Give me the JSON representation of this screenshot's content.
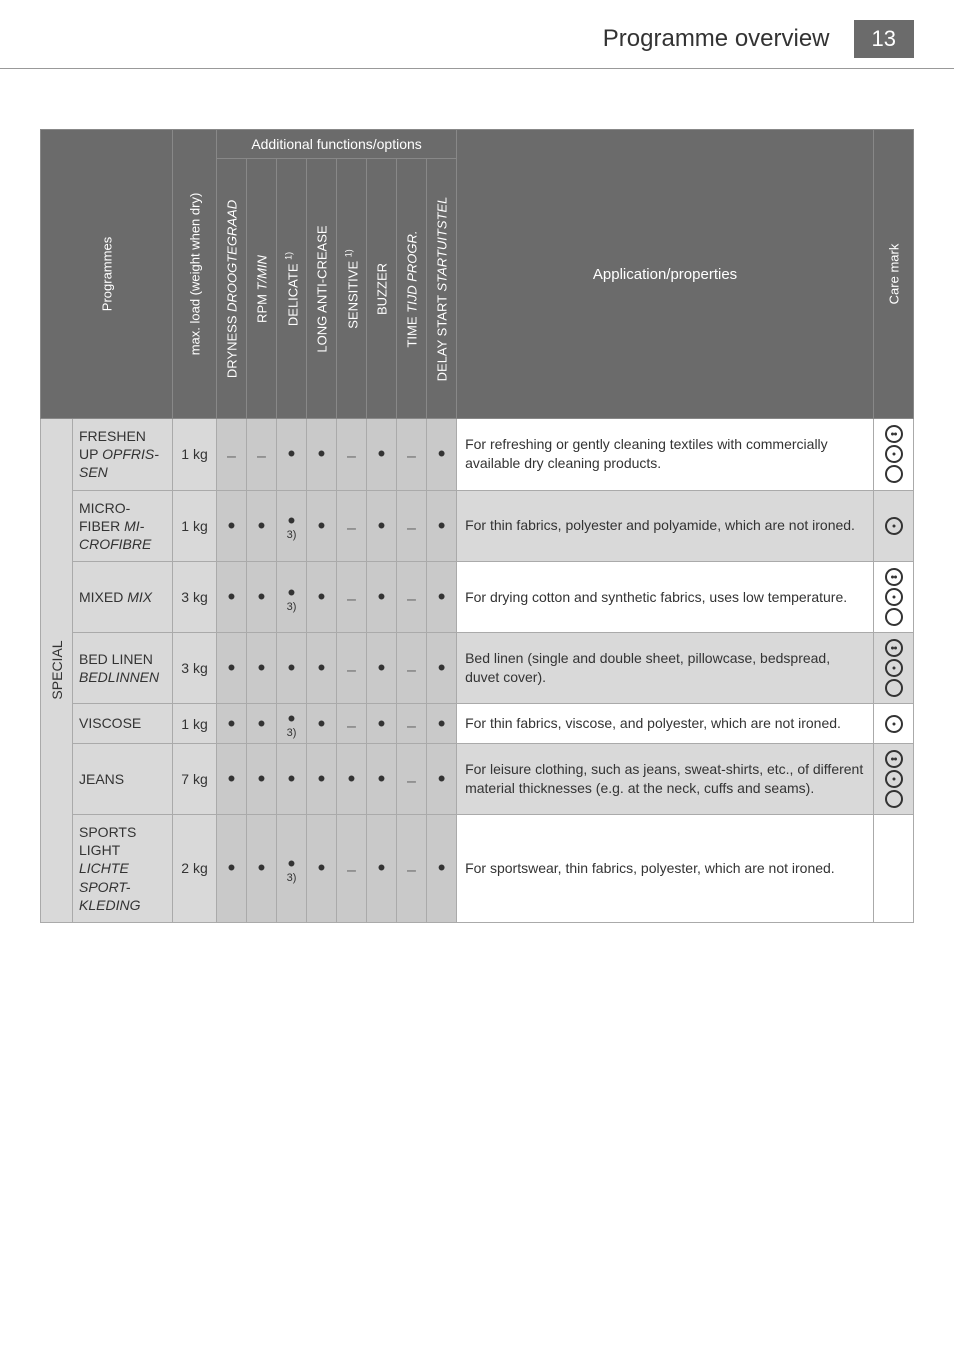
{
  "header": {
    "title": "Programme overview",
    "page": "13"
  },
  "table": {
    "addfunc_header": "Additional functions/options",
    "col_programmes": "Programmes",
    "col_maxload": "max. load (weight when dry)",
    "col_app": "Application/properties",
    "col_care": "Care mark",
    "opt_cols": [
      {
        "label": "DRYNESS ",
        "ital": "DROOGTEGRAAD"
      },
      {
        "label": "RPM ",
        "ital": "T/MIN"
      },
      {
        "label": "DELICATE ",
        "sup": "1)"
      },
      {
        "label": "LONG ANTI-CREASE"
      },
      {
        "label": "SENSITIVE",
        "sup": "1)"
      },
      {
        "label": "BUZZER"
      },
      {
        "label": "TIME ",
        "ital": "TIJD PROGR."
      },
      {
        "label": "DELAY START ",
        "ital": "STARTUITSTEL"
      }
    ],
    "category": "SPECIAL",
    "rows": [
      {
        "name": "FRESHEN UP ",
        "name_ital": "OPFRIS-SEN",
        "weight": "1 kg",
        "opts": [
          "–",
          "–",
          "•",
          "•",
          "–",
          "•",
          "–",
          "•"
        ],
        "fn": [
          null,
          null,
          null,
          null,
          null,
          null,
          null,
          null
        ],
        "app": "For refreshing or gently cleaning textiles with commercially available dry cleaning products.",
        "care": [
          "dot2",
          "dot1",
          "plain"
        ],
        "app_gray": false
      },
      {
        "name": "MICRO-FIBER ",
        "name_ital": "MI-CROFIBRE",
        "weight": "1 kg",
        "opts": [
          "•",
          "•",
          "•",
          "•",
          "–",
          "•",
          "–",
          "•"
        ],
        "fn": [
          null,
          null,
          "3)",
          null,
          null,
          null,
          null,
          null
        ],
        "app": "For thin fabrics, polyester and polyamide, which are not ironed.",
        "care": [
          "dot1"
        ],
        "app_gray": true
      },
      {
        "name": "MIXED ",
        "name_ital": "MIX",
        "weight": "3 kg",
        "opts": [
          "•",
          "•",
          "•",
          "•",
          "–",
          "•",
          "–",
          "•"
        ],
        "fn": [
          null,
          null,
          "3)",
          null,
          null,
          null,
          null,
          null
        ],
        "app": "For drying cotton and synthetic fabrics, uses low temperature.",
        "care": [
          "dot2",
          "dot1",
          "plain"
        ],
        "app_gray": false
      },
      {
        "name": "BED LINEN ",
        "name_ital": "BEDLINNEN",
        "weight": "3 kg",
        "opts": [
          "•",
          "•",
          "•",
          "•",
          "–",
          "•",
          "–",
          "•"
        ],
        "fn": [
          null,
          null,
          null,
          null,
          null,
          null,
          null,
          null
        ],
        "app": "Bed linen (single and double sheet, pillowcase, bedspread, duvet cover).",
        "care": [
          "dot2",
          "dot1",
          "plain"
        ],
        "app_gray": true
      },
      {
        "name": "VISCOSE",
        "name_ital": "",
        "weight": "1 kg",
        "opts": [
          "•",
          "•",
          "•",
          "•",
          "–",
          "•",
          "–",
          "•"
        ],
        "fn": [
          null,
          null,
          "3)",
          null,
          null,
          null,
          null,
          null
        ],
        "app": "For thin fabrics, viscose, and polyester, which are not ironed.",
        "care": [
          "dot1"
        ],
        "app_gray": false
      },
      {
        "name": "JEANS",
        "name_ital": "",
        "weight": "7 kg",
        "opts": [
          "•",
          "•",
          "•",
          "•",
          "•",
          "•",
          "–",
          "•"
        ],
        "fn": [
          null,
          null,
          null,
          null,
          null,
          null,
          null,
          null
        ],
        "app": "For leisure clothing, such as jeans, sweat-shirts, etc., of different material thicknesses (e.g. at the neck, cuffs and seams).",
        "care": [
          "dot2",
          "dot1",
          "plain"
        ],
        "app_gray": true
      },
      {
        "name": "SPORTS LIGHT ",
        "name_ital": "LICHTE SPORT-KLEDING",
        "weight": "2 kg",
        "opts": [
          "•",
          "•",
          "•",
          "•",
          "–",
          "•",
          "–",
          "•"
        ],
        "fn": [
          null,
          null,
          "3)",
          null,
          null,
          null,
          null,
          null
        ],
        "app": "For sportswear, thin fabrics, polyester, which are not ironed.",
        "care": [],
        "app_gray": false
      }
    ]
  }
}
